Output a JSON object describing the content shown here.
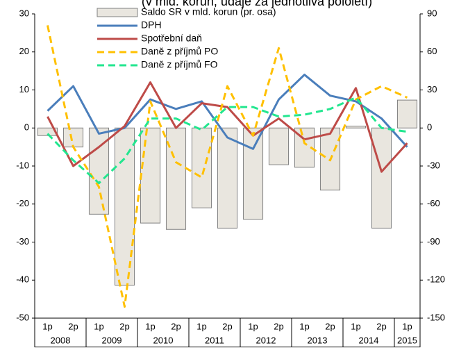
{
  "chart_data": {
    "type": "combo",
    "title": "(v mld. korun, údaje za jednotlivá pololetí)",
    "categories": [
      "1p",
      "2p",
      "1p",
      "2p",
      "1p",
      "2p",
      "1p",
      "2p",
      "1p",
      "2p",
      "1p",
      "2p",
      "1p",
      "2p",
      "1p"
    ],
    "x_groups": [
      "2008",
      "2009",
      "2010",
      "2011",
      "2012",
      "2013",
      "2014",
      "2015"
    ],
    "ylim": [
      -50,
      30
    ],
    "yticks": [
      -50,
      -40,
      -30,
      -20,
      -10,
      0,
      10,
      20,
      30
    ],
    "y2lim": [
      -150,
      90
    ],
    "y2ticks": [
      -150,
      -120,
      -90,
      -60,
      -30,
      0,
      30,
      60,
      90
    ],
    "series": [
      {
        "name": "Saldo SR v mld. korun (pr. osa)",
        "type": "bar",
        "axis": "y2",
        "color": "#e9e6df",
        "border": "#808080",
        "values": [
          -6,
          -15,
          -68,
          -124,
          -75,
          -80,
          -63,
          -79,
          -72,
          -29,
          -31,
          -49,
          1.5,
          -79,
          22
        ]
      },
      {
        "name": "DPH",
        "type": "line",
        "color": "#4a7ebb",
        "dash": false,
        "values": [
          4.5,
          11,
          -1.5,
          0,
          7.5,
          5,
          7,
          -2.5,
          -5.5,
          7.5,
          14,
          8.5,
          7,
          2.5,
          -5
        ]
      },
      {
        "name": "Spotřební daň",
        "type": "line",
        "color": "#be4b48",
        "dash": false,
        "values": [
          3,
          -10,
          -5,
          0.5,
          12,
          0,
          6.5,
          5.5,
          -2,
          2.5,
          -3,
          -1.5,
          10.5,
          -11.5,
          -4
        ]
      },
      {
        "name": "Daně z příjmů PO",
        "type": "line",
        "color": "#ffc000",
        "dash": true,
        "values": [
          27,
          -5,
          -15.5,
          -47,
          7,
          -9,
          -13,
          11,
          -2,
          21,
          -4,
          -8.5,
          7.5,
          11,
          8
        ]
      },
      {
        "name": "Daně z příjmů FO",
        "type": "line",
        "color": "#22e68f",
        "dash": true,
        "values": [
          -1.5,
          -8.5,
          -14.5,
          -8,
          2.5,
          2.5,
          -0.5,
          5.5,
          5.5,
          3,
          3.5,
          5,
          8,
          0,
          -1
        ]
      }
    ]
  }
}
